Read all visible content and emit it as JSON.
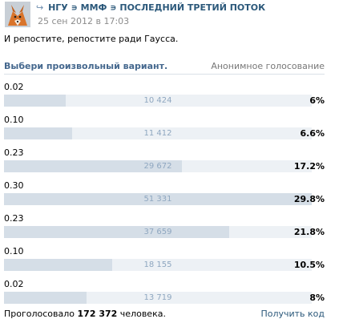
{
  "header": {
    "repost_glyph": "↪",
    "source": "НГУ ∍ ММФ ∍ ПОСЛЕДНИЙ ТРЕТИЙ ПОТОК",
    "date": "25 сен 2012 в 17:03"
  },
  "post": {
    "text": "И репостите, репостите ради Гаусса."
  },
  "poll": {
    "title": "Выбери произвольный вариант.",
    "type": "Анонимное голосование",
    "options": [
      {
        "label": "0.02",
        "count": "10 424",
        "percent": "6%",
        "fraction": 0.06
      },
      {
        "label": "0.10",
        "count": "11 412",
        "percent": "6.6%",
        "fraction": 0.066
      },
      {
        "label": "0.23",
        "count": "29 672",
        "percent": "17.2%",
        "fraction": 0.172
      },
      {
        "label": "0.30",
        "count": "51 331",
        "percent": "29.8%",
        "fraction": 0.298
      },
      {
        "label": "0.23",
        "count": "37 659",
        "percent": "21.8%",
        "fraction": 0.218
      },
      {
        "label": "0.10",
        "count": "18 155",
        "percent": "10.5%",
        "fraction": 0.105
      },
      {
        "label": "0.02",
        "count": "13 719",
        "percent": "8%",
        "fraction": 0.08
      }
    ],
    "max_fraction": 0.298
  },
  "footer": {
    "voted_prefix": "Проголосовало",
    "voted_total": "172 372",
    "voted_suffix": "человека.",
    "get_code": "Получить код"
  },
  "colors": {
    "link": "#2b587a",
    "poll_title": "#45688e",
    "bar_fill": "#d5dee7",
    "bar_track": "#edf1f5",
    "count_text": "#8fa7c0"
  },
  "icons": {
    "avatar": "fox-avatar-icon",
    "repost": "repost-arrow-icon"
  }
}
